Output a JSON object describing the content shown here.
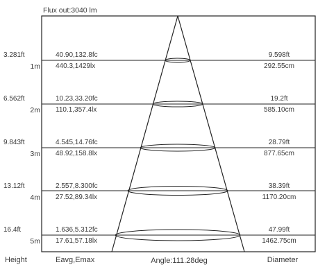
{
  "flux_label": "Flux out:3040 lm",
  "rows": [
    {
      "height_ft": "3.281ft",
      "height_m": "1m",
      "fc": "40.90,132.8fc",
      "lx": "440.3,1429lx",
      "diameter_ft": "9.598ft",
      "diameter_cm": "292.55cm"
    },
    {
      "height_ft": "6.562ft",
      "height_m": "2m",
      "fc": "10.23,33.20fc",
      "lx": "110.1,357.4lx",
      "diameter_ft": "19.2ft",
      "diameter_cm": "585.10cm"
    },
    {
      "height_ft": "9.843ft",
      "height_m": "3m",
      "fc": "4.545,14.76fc",
      "lx": "48.92,158.8lx",
      "diameter_ft": "28.79ft",
      "diameter_cm": "877.65cm"
    },
    {
      "height_ft": "13.12ft",
      "height_m": "4m",
      "fc": "2.557,8.300fc",
      "lx": "27.52,89.34lx",
      "diameter_ft": "38.39ft",
      "diameter_cm": "1170.20cm"
    },
    {
      "height_ft": "16.4ft",
      "height_m": "5m",
      "fc": "1.636,5.312fc",
      "lx": "17.61,57.18lx",
      "diameter_ft": "47.99ft",
      "diameter_cm": "1462.75cm"
    }
  ],
  "footer": {
    "height_label": "Height",
    "illuminance_label": "Eavg,Emax",
    "angle_label": "Angle:111.28deg",
    "diameter_label": "Diameter"
  }
}
